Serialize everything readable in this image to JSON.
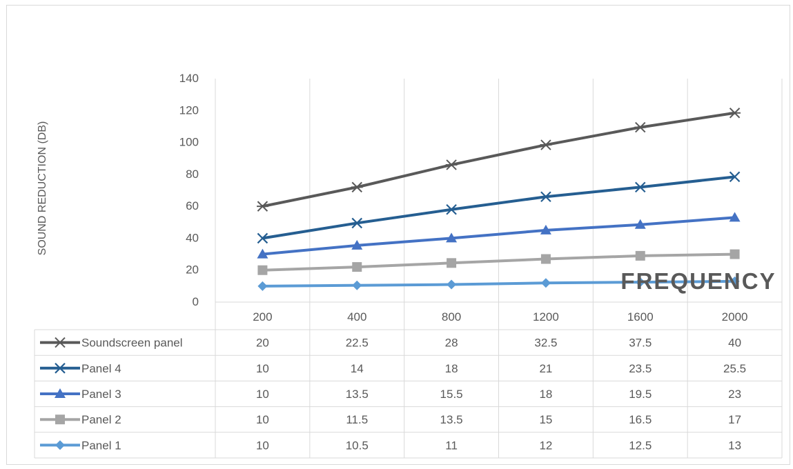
{
  "chart_data": {
    "type": "line",
    "title": "",
    "xlabel": "FREQUENCY",
    "ylabel": "SOUND REDUCTION (DB)",
    "categories": [
      "200",
      "400",
      "800",
      "1200",
      "1600",
      "2000"
    ],
    "stacked": true,
    "ylim": [
      0,
      140
    ],
    "yticks": [
      0,
      20,
      40,
      60,
      80,
      100,
      120,
      140
    ],
    "grid": "vertical",
    "legend": "data-table",
    "series": [
      {
        "name": "Soundscreen panel",
        "values": [
          20,
          22.5,
          28,
          32.5,
          37.5,
          40
        ],
        "labels": [
          "20",
          "22.5",
          "28",
          "32.5",
          "37.5",
          "40"
        ],
        "color": "#595959",
        "marker": "star"
      },
      {
        "name": "Panel 4",
        "values": [
          10,
          14,
          18,
          21,
          23.5,
          25.5
        ],
        "labels": [
          "10",
          "14",
          "18",
          "21",
          "23.5",
          "25.5"
        ],
        "color": "#255E91",
        "marker": "x"
      },
      {
        "name": "Panel 3",
        "values": [
          10,
          13.5,
          15.5,
          18,
          19.5,
          23
        ],
        "labels": [
          "10",
          "13.5",
          "15.5",
          "18",
          "19.5",
          "23"
        ],
        "color": "#4472C4",
        "marker": "triangle"
      },
      {
        "name": "Panel 2",
        "values": [
          10,
          11.5,
          13.5,
          15,
          16.5,
          17
        ],
        "labels": [
          "10",
          "11.5",
          "13.5",
          "15",
          "16.5",
          "17"
        ],
        "color": "#A5A5A5",
        "marker": "square"
      },
      {
        "name": "Panel 1",
        "values": [
          10,
          10.5,
          11,
          12,
          12.5,
          13
        ],
        "labels": [
          "10",
          "10.5",
          "11",
          "12",
          "12.5",
          "13"
        ],
        "color": "#5B9BD5",
        "marker": "diamond"
      }
    ]
  }
}
